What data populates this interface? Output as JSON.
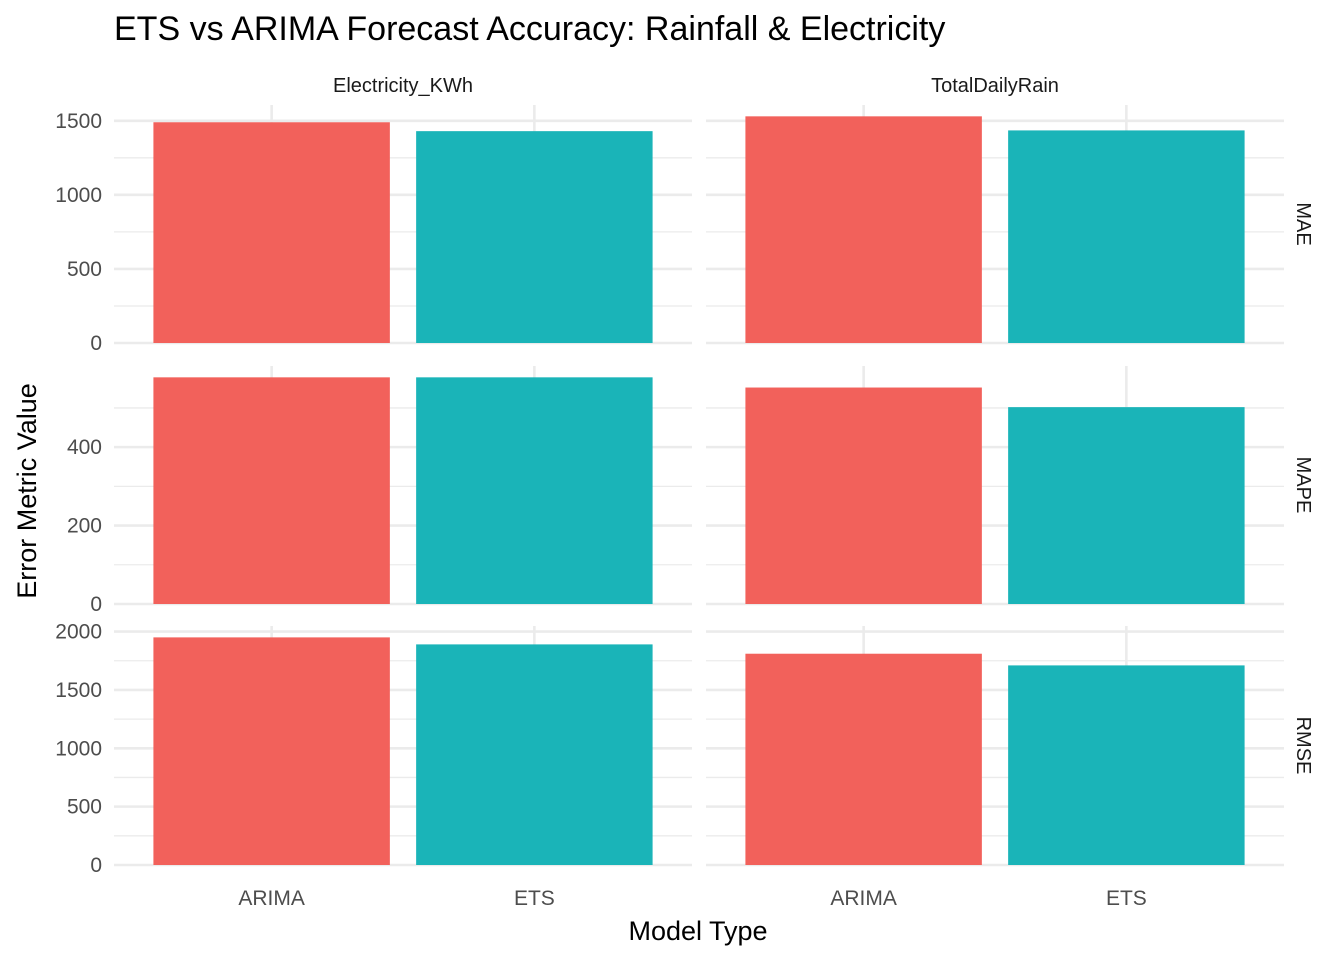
{
  "chart_data": {
    "type": "bar",
    "title": "ETS vs ARIMA Forecast Accuracy: Rainfall & Electricity",
    "xlabel": "Model Type",
    "ylabel": "Error Metric Value",
    "categories": [
      "ARIMA",
      "ETS"
    ],
    "colors": {
      "ARIMA": "#F8766D",
      "ETS": "#00BFC4",
      "ARIMA_fill": "#F2615B",
      "ETS_fill": "#1AB4B8"
    },
    "facet_columns": [
      "Electricity_KWh",
      "TotalDailyRain"
    ],
    "facet_rows": [
      "MAE",
      "MAPE",
      "RMSE"
    ],
    "grid": true,
    "legend": "none",
    "panels": [
      {
        "metric": "MAE",
        "ylim": [
          0,
          1530
        ],
        "yticks": [
          0,
          500,
          1000,
          1500
        ],
        "ytick_labels": [
          "0",
          "500",
          "1000",
          "1500"
        ],
        "values": {
          "Electricity_KWh": [
            1490,
            1430
          ],
          "TotalDailyRain": [
            1530,
            1435
          ]
        }
      },
      {
        "metric": "MAPE",
        "ylim": [
          0,
          578
        ],
        "yticks": [
          0,
          200,
          400
        ],
        "ytick_labels": [
          "0",
          "200",
          "400"
        ],
        "values": {
          "Electricity_KWh": [
            578,
            578
          ],
          "TotalDailyRain": [
            552,
            502
          ]
        }
      },
      {
        "metric": "RMSE",
        "ylim": [
          0,
          1950
        ],
        "yticks": [
          0,
          500,
          1000,
          1500,
          2000
        ],
        "ytick_labels": [
          "0",
          "500",
          "1000",
          "1500",
          "2000"
        ],
        "values": {
          "Electricity_KWh": [
            1950,
            1890
          ],
          "TotalDailyRain": [
            1810,
            1710
          ]
        }
      }
    ]
  }
}
